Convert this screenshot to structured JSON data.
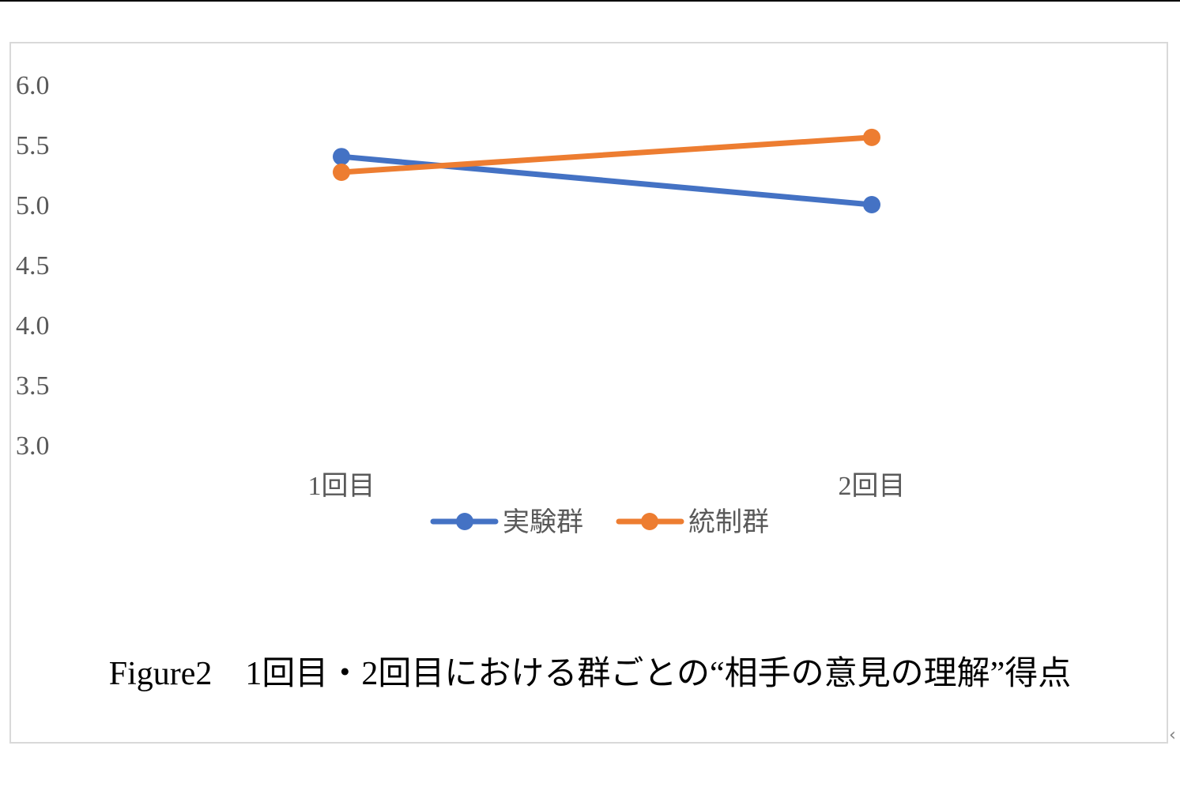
{
  "caption": "Figure2　1回目・2回目における群ごとの“相手の意見の理解”得点",
  "chart_data": {
    "type": "line",
    "title": "",
    "xlabel": "",
    "ylabel": "",
    "categories": [
      "1回目",
      "2回目"
    ],
    "ylim": [
      3.0,
      6.0
    ],
    "yticks": [
      "6.0",
      "5.5",
      "5.0",
      "4.5",
      "4.0",
      "3.5",
      "3.0"
    ],
    "grid": false,
    "legend_position": "bottom",
    "series": [
      {
        "name": "実験群",
        "values": [
          5.4,
          5.0
        ],
        "color": "#4472C4"
      },
      {
        "name": "統制群",
        "values": [
          5.27,
          5.56
        ],
        "color": "#ED7D31"
      }
    ]
  }
}
